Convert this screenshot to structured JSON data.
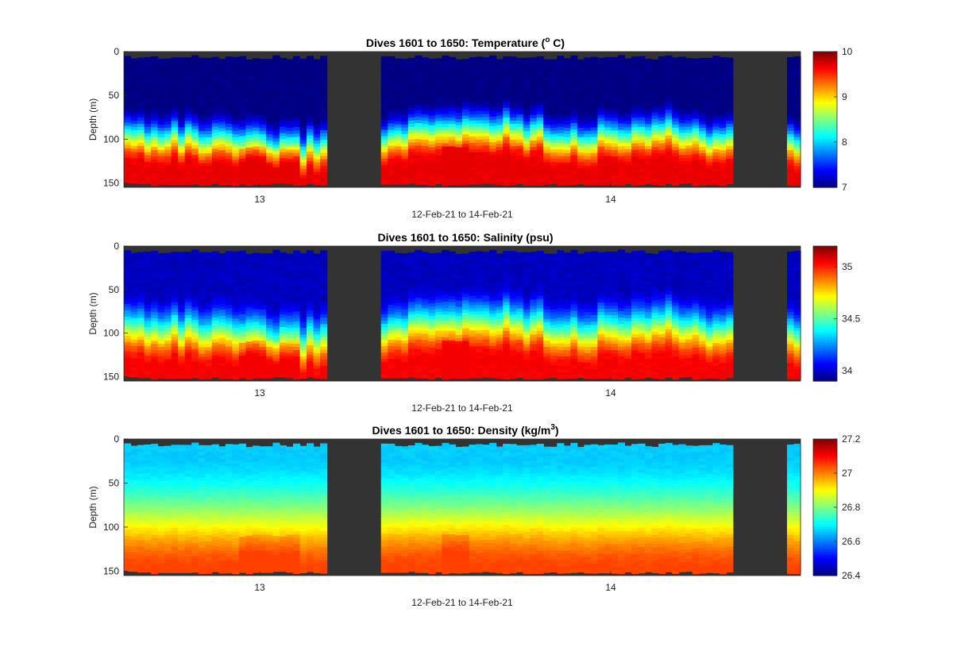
{
  "chart_data": [
    {
      "type": "heatmap",
      "title": "Dives 1601 to 1650: Temperature (",
      "title_sup": "o",
      "title_end": " C)",
      "ylabel": "Depth (m)",
      "xlabel": "12-Feb-21 to 14-Feb-21",
      "xticks": [
        "13",
        "14"
      ],
      "yticks": [
        "0",
        "50",
        "100",
        "150"
      ],
      "ylim": [
        0,
        155
      ],
      "colorbar": {
        "min": 7,
        "max": 10,
        "ticks": [
          7,
          8,
          9,
          10
        ],
        "labels": [
          "7",
          "8",
          "9",
          "10"
        ]
      },
      "surface_value": 7.0,
      "bottom_value": 9.7,
      "thermocline_depth_m": [
        82,
        80,
        85,
        88,
        92,
        95,
        90,
        88,
        80,
        75,
        70,
        72,
        80,
        85,
        78,
        75,
        80,
        88,
        90,
        92
      ],
      "colormap": "jet"
    },
    {
      "type": "heatmap",
      "title": "Dives 1601 to 1650: Salinity (psu)",
      "ylabel": "Depth (m)",
      "xlabel": "12-Feb-21 to 14-Feb-21",
      "xticks": [
        "13",
        "14"
      ],
      "yticks": [
        "0",
        "50",
        "100",
        "150"
      ],
      "ylim": [
        0,
        155
      ],
      "colorbar": {
        "min": 33.9,
        "max": 35.2,
        "ticks": [
          34,
          34.5,
          35
        ],
        "labels": [
          "34",
          "34.5",
          "35"
        ]
      },
      "surface_value": 33.98,
      "bottom_value": 35.05,
      "colormap": "jet"
    },
    {
      "type": "heatmap",
      "title": "Dives 1601 to 1650: Density (kg/m",
      "title_sup": "3",
      "title_end": ")",
      "ylabel": "Depth (m)",
      "xlabel": "12-Feb-21 to 14-Feb-21",
      "xticks": [
        "13",
        "14"
      ],
      "yticks": [
        "0",
        "50",
        "100",
        "150"
      ],
      "ylim": [
        0,
        155
      ],
      "colorbar": {
        "min": 26.4,
        "max": 27.2,
        "ticks": [
          26.4,
          26.6,
          26.8,
          27,
          27.2
        ],
        "labels": [
          "26.4",
          "26.6",
          "26.8",
          "27",
          "27.2"
        ]
      },
      "surface_value": 26.66,
      "bottom_value": 27.05,
      "colormap": "jet"
    }
  ]
}
